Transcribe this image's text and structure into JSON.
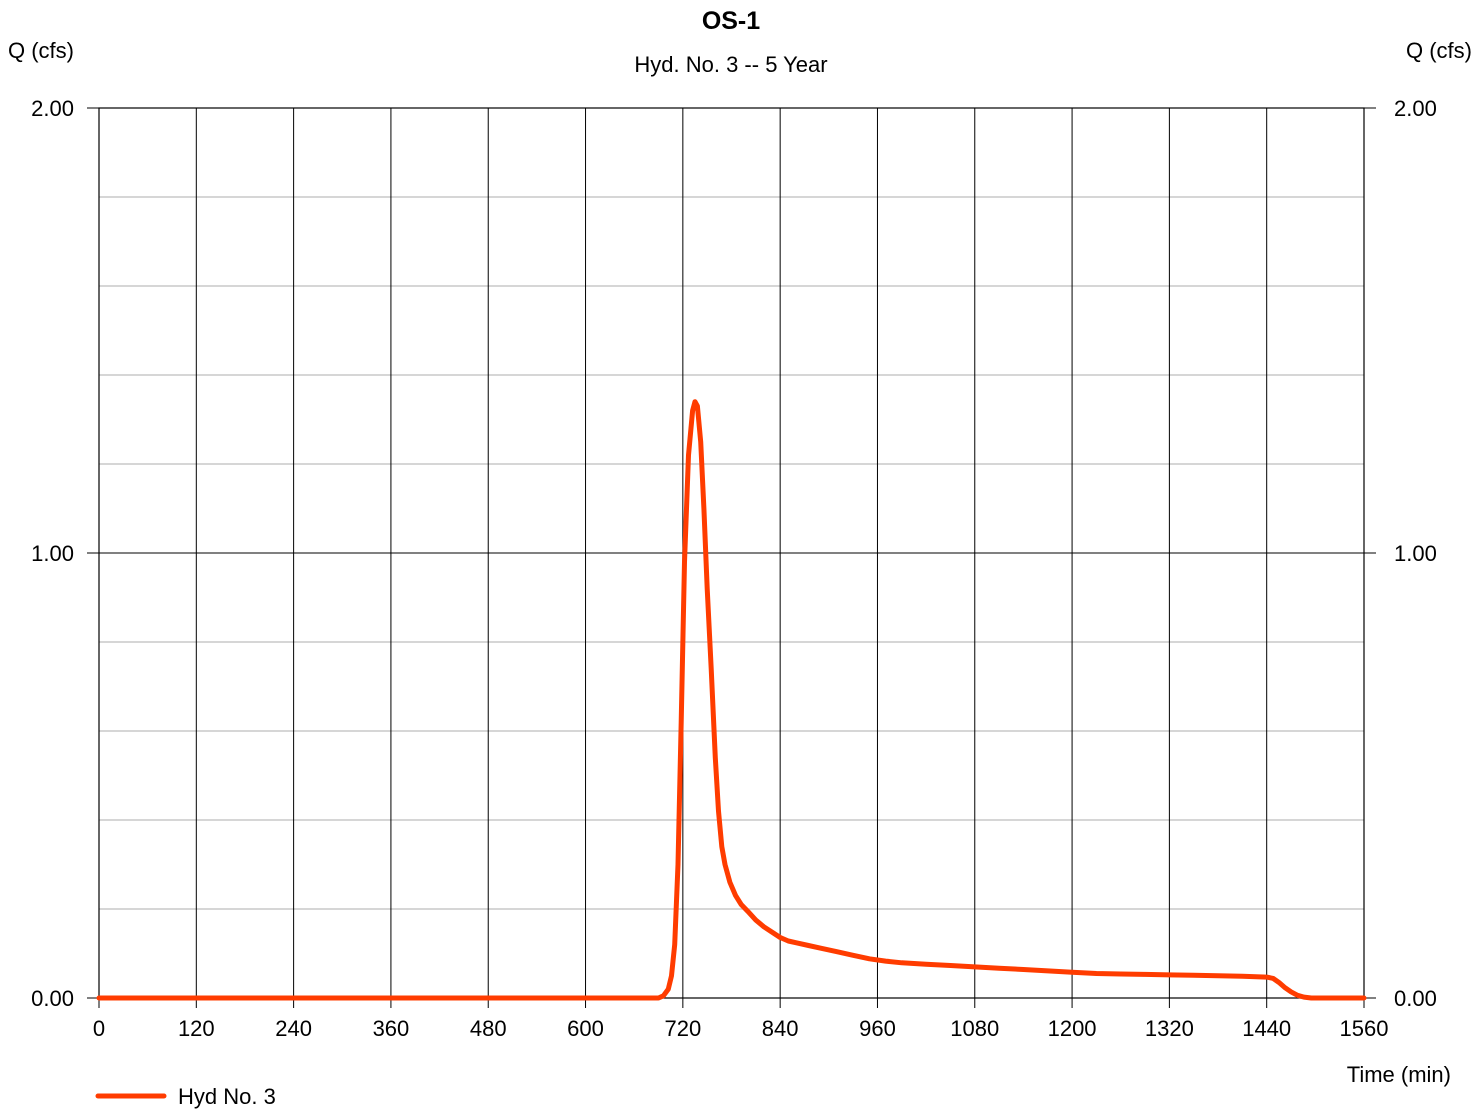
{
  "chart_data": {
    "type": "line",
    "title": "OS-1",
    "subtitle": "Hyd. No. 3 -- 5 Year",
    "ylabel_left": "Q (cfs)",
    "ylabel_right": "Q (cfs)",
    "xlabel": "Time (min)",
    "xlim": [
      0,
      1560
    ],
    "ylim": [
      0,
      2
    ],
    "x_ticks": [
      0,
      120,
      240,
      360,
      480,
      600,
      720,
      840,
      960,
      1080,
      1200,
      1320,
      1440,
      1560
    ],
    "x_tick_labels": [
      "0",
      "120",
      "240",
      "360",
      "480",
      "600",
      "720",
      "840",
      "960",
      "1080",
      "1200",
      "1320",
      "1440",
      "1560"
    ],
    "y_ticks": [
      0,
      1,
      2
    ],
    "y_tick_labels": [
      "0.00",
      "1.00",
      "2.00"
    ],
    "y_minor_step": 0.2,
    "grid": true,
    "legend_position": "bottom-left",
    "series": [
      {
        "name": "Hyd No. 3",
        "color": "#ff3c00",
        "x": [
          0,
          690,
          696,
          702,
          706,
          710,
          714,
          718,
          722,
          727,
          732,
          735,
          738,
          742,
          746,
          750,
          755,
          760,
          764,
          768,
          772,
          778,
          785,
          792,
          800,
          810,
          820,
          830,
          840,
          850,
          860,
          875,
          890,
          910,
          930,
          950,
          970,
          990,
          1020,
          1050,
          1080,
          1110,
          1140,
          1170,
          1200,
          1230,
          1260,
          1290,
          1320,
          1350,
          1380,
          1410,
          1440,
          1448,
          1455,
          1462,
          1470,
          1478,
          1486,
          1495,
          1510,
          1560
        ],
        "y": [
          0,
          0,
          0.005,
          0.02,
          0.05,
          0.12,
          0.3,
          0.62,
          0.98,
          1.22,
          1.32,
          1.34,
          1.33,
          1.25,
          1.1,
          0.92,
          0.74,
          0.54,
          0.42,
          0.34,
          0.3,
          0.26,
          0.23,
          0.21,
          0.195,
          0.175,
          0.16,
          0.148,
          0.136,
          0.128,
          0.124,
          0.118,
          0.112,
          0.104,
          0.096,
          0.088,
          0.083,
          0.079,
          0.076,
          0.073,
          0.07,
          0.067,
          0.064,
          0.061,
          0.058,
          0.055,
          0.054,
          0.053,
          0.052,
          0.051,
          0.05,
          0.049,
          0.047,
          0.044,
          0.035,
          0.024,
          0.014,
          0.006,
          0.002,
          0,
          0,
          0
        ]
      }
    ]
  }
}
